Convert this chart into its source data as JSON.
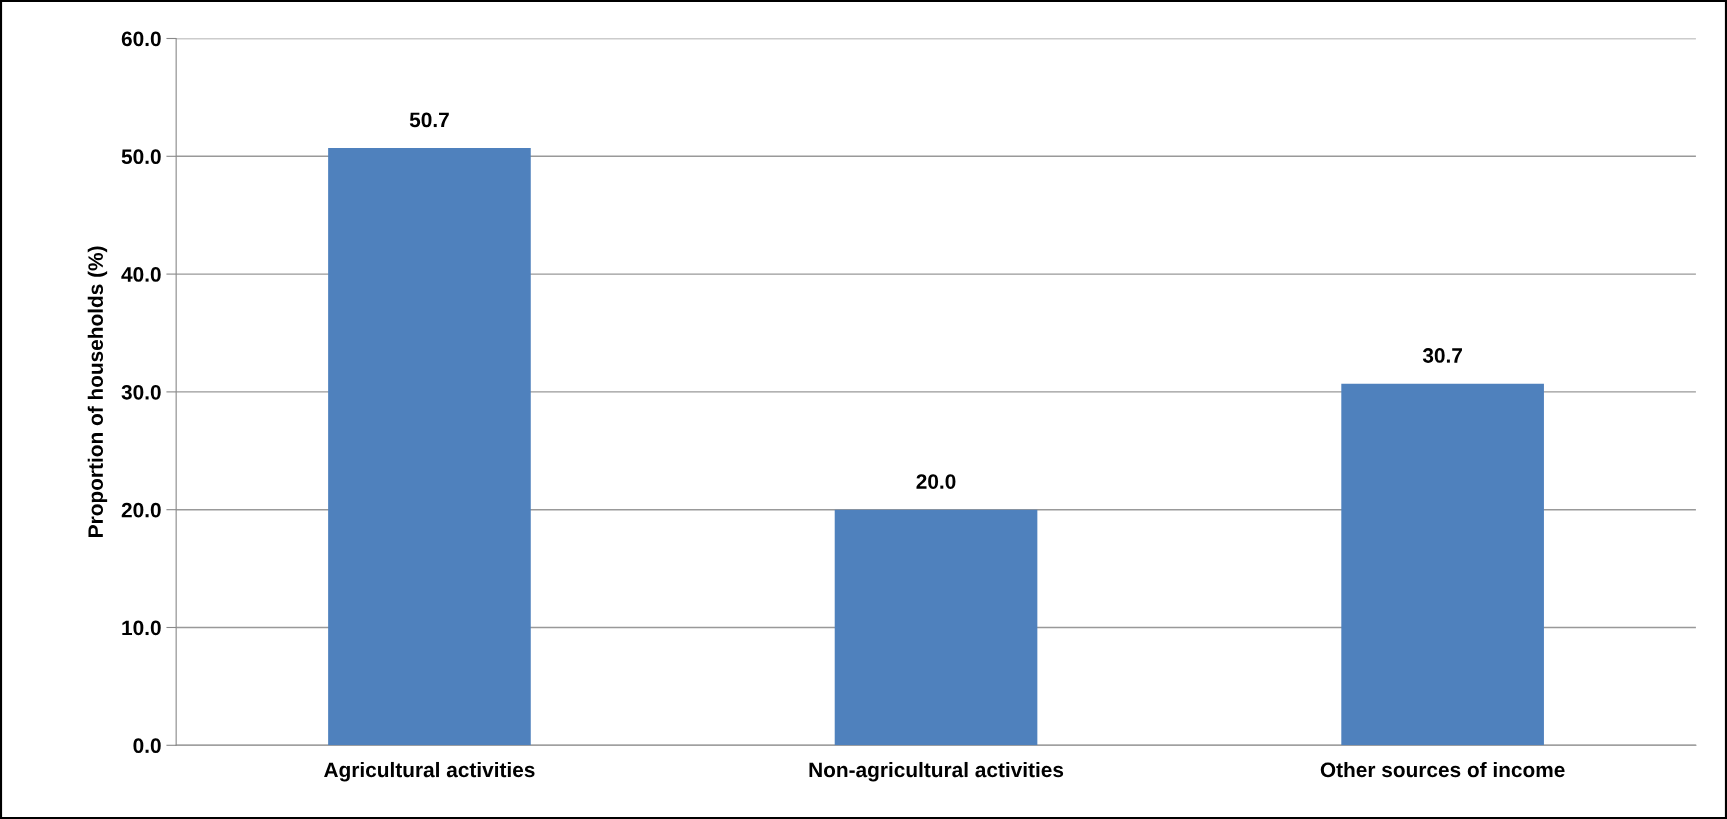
{
  "chart_data": {
    "type": "bar",
    "ylabel": "Proportion of households (%)",
    "categories": [
      "Agricultural activities",
      "Non-agricultural activities",
      "Other sources of income"
    ],
    "values": [
      50.7,
      20.0,
      30.7
    ],
    "color": "#4f81bd",
    "data_labels": true,
    "value_labels": [
      "50.7",
      "20.0",
      "30.7"
    ],
    "ylim": [
      0,
      60
    ],
    "yticks": [
      {
        "value": 0,
        "label": "0.0"
      },
      {
        "value": 10,
        "label": "10.0"
      },
      {
        "value": 20,
        "label": "20.0"
      },
      {
        "value": 30,
        "label": "30.0"
      },
      {
        "value": 40,
        "label": "40.0"
      },
      {
        "value": 50,
        "label": "50.0"
      },
      {
        "value": 60,
        "label": "60.0"
      }
    ],
    "grid": "y",
    "legend": false
  }
}
